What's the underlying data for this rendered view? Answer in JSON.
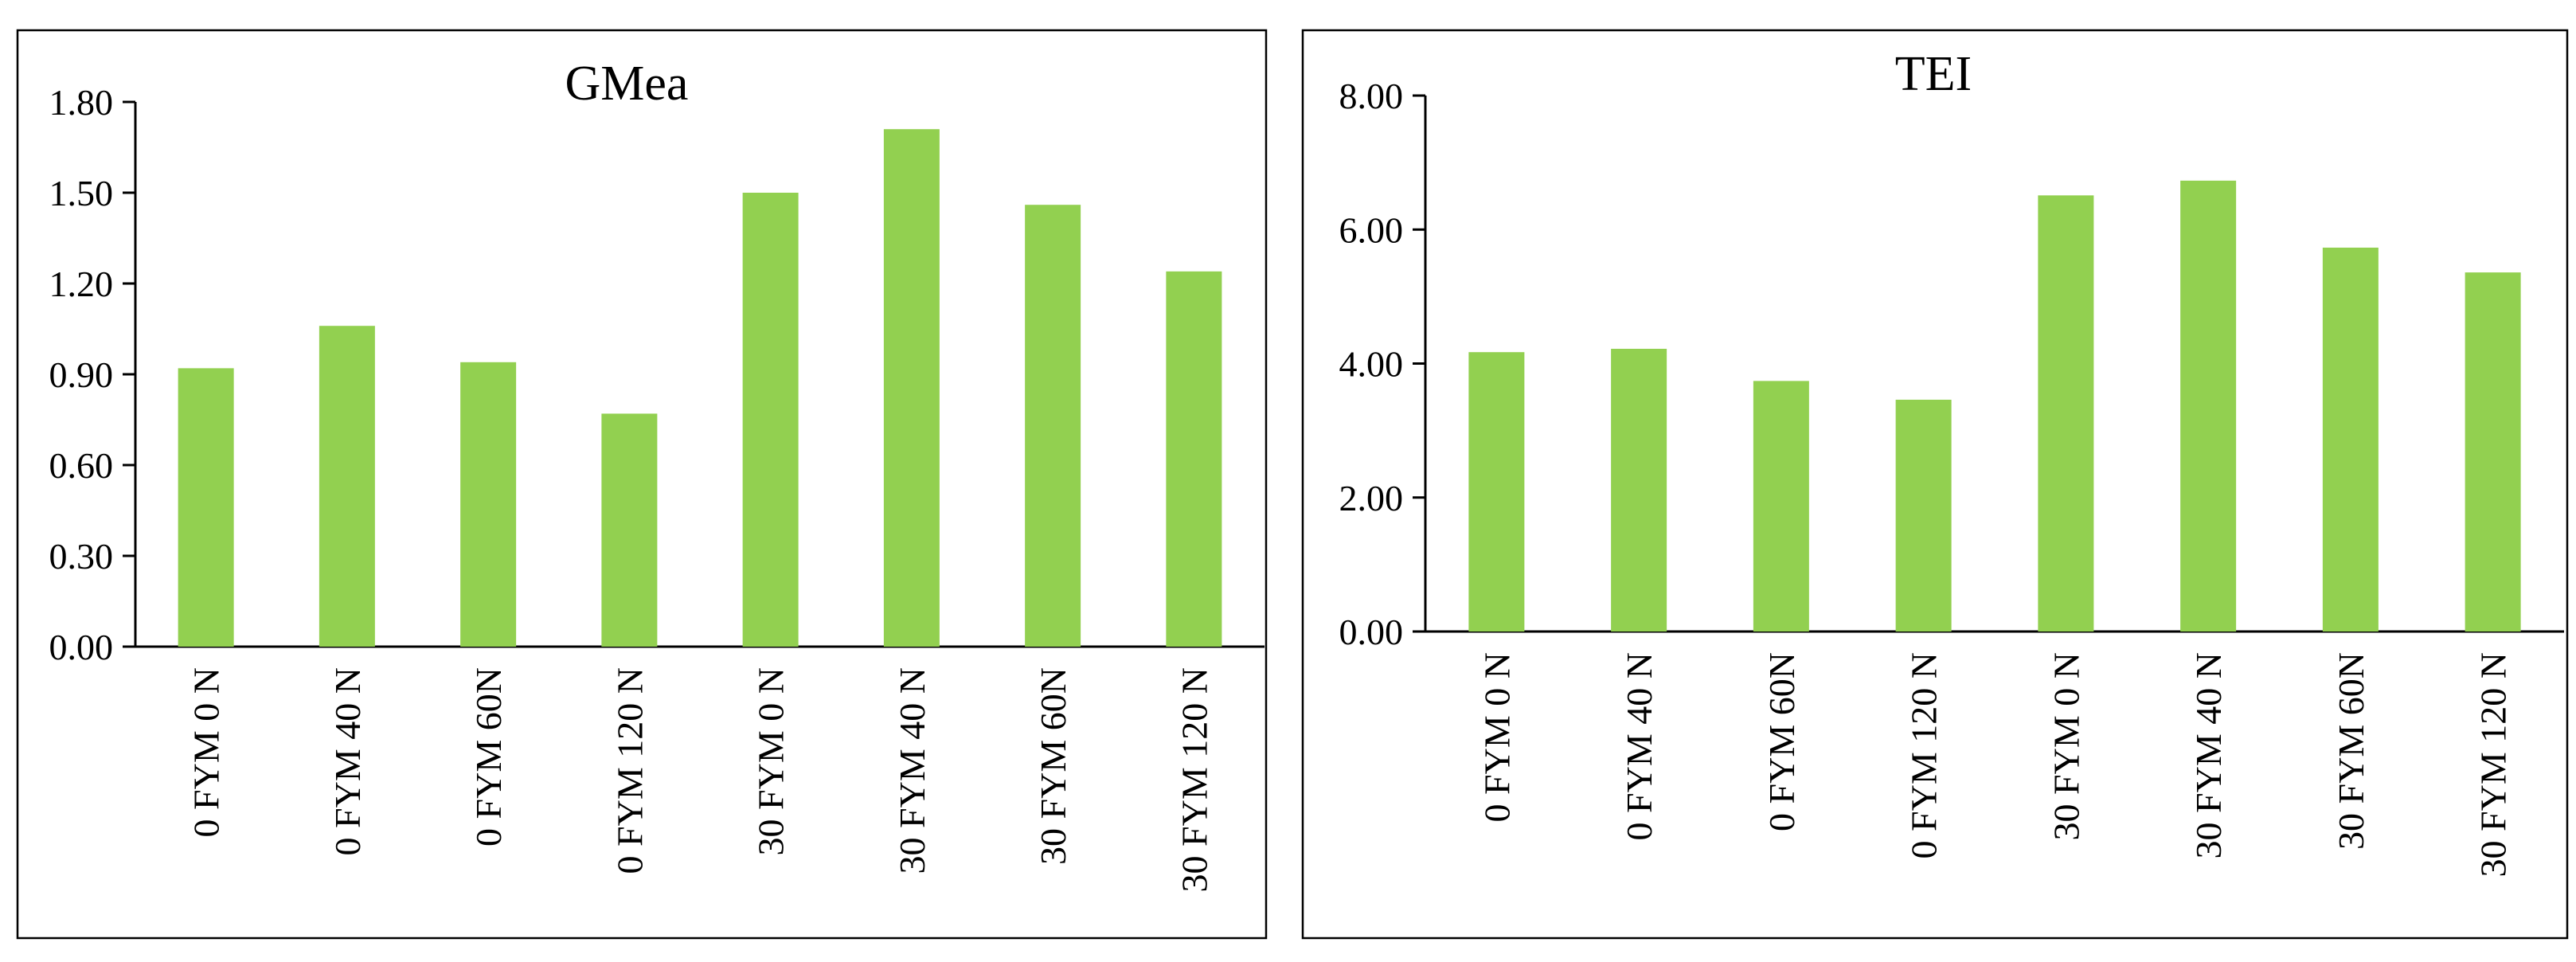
{
  "chart_data": [
    {
      "type": "bar",
      "title": "GMea",
      "xlabel": "",
      "ylabel": "",
      "categories": [
        "0 FYM 0 N",
        "0 FYM 40 N",
        "0 FYM 60N",
        "0 FYM 120 N",
        "30 FYM 0 N",
        "30 FYM 40 N",
        "30 FYM 60N",
        "30 FYM 120 N"
      ],
      "values": [
        0.92,
        1.06,
        0.94,
        0.77,
        1.5,
        1.71,
        1.46,
        1.24
      ],
      "ylim": [
        0,
        1.8
      ],
      "yticks": [
        "0.00",
        "0.30",
        "0.60",
        "0.90",
        "1.20",
        "1.50",
        "1.80"
      ],
      "bar_color": "#92D050",
      "grid": false,
      "legend": "none"
    },
    {
      "type": "bar",
      "title": "TEI",
      "xlabel": "",
      "ylabel": "",
      "categories": [
        "0 FYM 0 N",
        "0 FYM 40 N",
        "0 FYM 60N",
        "0 FYM 120 N",
        "30 FYM 0 N",
        "30 FYM 40 N",
        "30 FYM 60N",
        "30 FYM 120 N"
      ],
      "values": [
        4.17,
        4.22,
        3.74,
        3.46,
        6.51,
        6.73,
        5.73,
        5.36
      ],
      "ylim": [
        0,
        8
      ],
      "yticks": [
        "0.00",
        "2.00",
        "4.00",
        "6.00",
        "8.00"
      ],
      "bar_color": "#92D050",
      "grid": false,
      "legend": "none"
    }
  ]
}
